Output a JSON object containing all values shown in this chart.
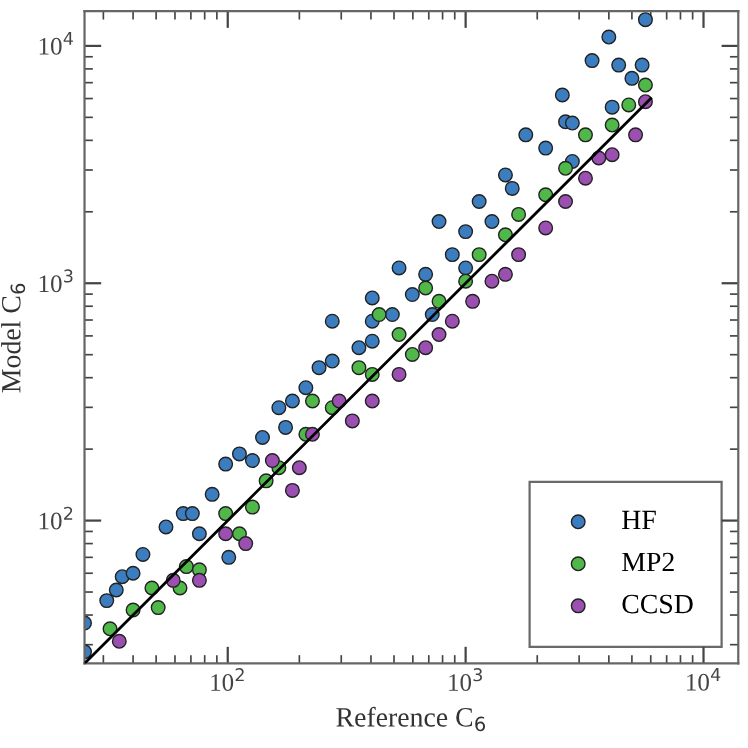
{
  "chart_data": {
    "type": "scatter",
    "xlabel": "Reference C$_{6}$",
    "ylabel": "Model C$_{6}$",
    "log": "xy",
    "xlim": [
      25,
      14000
    ],
    "ylim": [
      25,
      14000
    ],
    "xticks": [
      {
        "value": 100,
        "label": "10$^{2}$"
      },
      {
        "value": 1000,
        "label": "10$^{3}$"
      },
      {
        "value": 10000,
        "label": "10$^{4}$"
      }
    ],
    "yticks": [
      {
        "value": 100,
        "label": "10$^{2}$"
      },
      {
        "value": 1000,
        "label": "10$^{3}$"
      },
      {
        "value": 10000,
        "label": "10$^{4}$"
      }
    ],
    "grid": false,
    "legend": "bottom right",
    "marker": "circle",
    "series": [
      {
        "name": "HF",
        "color": "#3b7dbf",
        "x": [
          25,
          31,
          36,
          44,
          55,
          65,
          76,
          86,
          98,
          112,
          140,
          164,
          187,
          213,
          242,
          275,
          356,
          405,
          405,
          492,
          597,
          679,
          879,
          1000,
          1140,
          1290,
          1470,
          1790,
          2170,
          2630,
          2810,
          3400,
          4000,
          4400,
          5000,
          5520,
          5700,
          4130,
          2550,
          2810,
          25,
          34,
          40,
          101,
          127,
          175,
          275,
          525,
          724,
          1000,
          773,
          1570,
          405,
          71
        ],
        "values": [
          37,
          46,
          58,
          72,
          94,
          107,
          88,
          129,
          173,
          191,
          224,
          299,
          319,
          363,
          441,
          470,
          535,
          570,
          867,
          738,
          896,
          1090,
          1320,
          1650,
          2210,
          1820,
          2860,
          4220,
          3710,
          4790,
          3260,
          8670,
          10900,
          8300,
          7300,
          8300,
          12900,
          5520,
          6210,
          4730,
          28,
          51,
          60,
          70,
          179,
          247,
          692,
          1160,
          738,
          1160,
          1820,
          2510,
          692,
          107
        ]
      },
      {
        "name": "MP2",
        "color": "#4fb848",
        "x": [
          32,
          40,
          51,
          67,
          76,
          98,
          112,
          145,
          164,
          213,
          227,
          275,
          356,
          405,
          525,
          597,
          773,
          1000,
          1140,
          1470,
          1670,
          2170,
          2630,
          3190,
          4130,
          4850,
          5700,
          3870,
          433,
          127,
          48,
          63,
          679
        ],
        "values": [
          35,
          42,
          43,
          64,
          62,
          107,
          88,
          147,
          167,
          231,
          319,
          299,
          441,
          413,
          608,
          501,
          839,
          1020,
          1320,
          1600,
          1950,
          2360,
          3050,
          4220,
          4640,
          5640,
          6840,
          null,
          738,
          114,
          52,
          52,
          955
        ]
      },
      {
        "name": "CCSD",
        "color": "#9b4fb0",
        "x": [
          35,
          59,
          98,
          119,
          187,
          200,
          294,
          334,
          525,
          679,
          879,
          1070,
          1290,
          1670,
          2170,
          2630,
          3190,
          4130,
          5180,
          5700,
          76,
          154,
          405,
          227,
          773,
          1470,
          3630
        ],
        "values": [
          31,
          56,
          88,
          80,
          134,
          167,
          319,
          263,
          413,
          535,
          692,
          839,
          1020,
          1320,
          1710,
          2210,
          2770,
          3480,
          4220,
          5820,
          56,
          179,
          319,
          231,
          608,
          1090,
          3370
        ]
      },
      {
        "type": "line",
        "color": "#000000",
        "marker": "none",
        "line_style": "solid",
        "x": [
          25,
          6000
        ],
        "values": [
          25,
          6000
        ]
      }
    ]
  }
}
